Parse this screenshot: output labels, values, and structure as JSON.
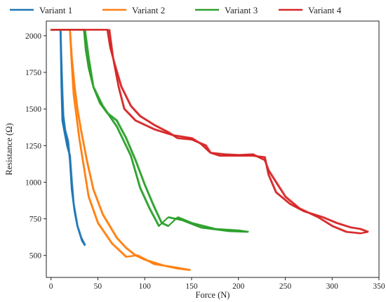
{
  "chart_data": {
    "type": "line",
    "xlabel": "Force (N)",
    "ylabel": "Resistance (Ω)",
    "xlim": [
      -5,
      350
    ],
    "ylim": [
      350,
      2100
    ],
    "xticks": [
      0,
      50,
      100,
      150,
      200,
      250,
      300,
      350
    ],
    "yticks": [
      500,
      750,
      1000,
      1250,
      1500,
      1750,
      2000
    ],
    "legend_position": "top",
    "grid": false,
    "series": [
      {
        "name": "Variant 1",
        "color": "#1f77b4",
        "x": [
          0,
          10,
          11,
          12,
          13,
          15,
          18,
          20,
          22,
          25,
          28,
          32,
          36,
          33,
          28,
          24,
          22,
          20,
          17,
          14,
          12,
          11,
          10
        ],
        "y": [
          2040,
          2040,
          1800,
          1600,
          1450,
          1350,
          1280,
          1150,
          950,
          800,
          700,
          620,
          570,
          600,
          700,
          850,
          1000,
          1180,
          1250,
          1350,
          1420,
          1650,
          2040
        ]
      },
      {
        "name": "Variant 2",
        "color": "#ff7f0e",
        "x": [
          0,
          20,
          22,
          25,
          28,
          32,
          38,
          45,
          55,
          70,
          80,
          90,
          100,
          120,
          135,
          148,
          130,
          110,
          92,
          80,
          65,
          50,
          40,
          35,
          30,
          27,
          24,
          22,
          20
        ],
        "y": [
          2040,
          2040,
          1850,
          1650,
          1500,
          1350,
          1150,
          950,
          780,
          620,
          550,
          500,
          470,
          430,
          410,
          400,
          420,
          440,
          500,
          490,
          580,
          720,
          900,
          1100,
          1300,
          1450,
          1600,
          1800,
          2040
        ]
      },
      {
        "name": "Variant 3",
        "color": "#2ca02c",
        "x": [
          0,
          35,
          37,
          40,
          45,
          52,
          60,
          70,
          80,
          90,
          100,
          110,
          118,
          125,
          135,
          150,
          175,
          200,
          210,
          190,
          160,
          140,
          125,
          115,
          105,
          95,
          85,
          70,
          55,
          45,
          40,
          36
        ],
        "y": [
          2040,
          2040,
          1900,
          1780,
          1650,
          1540,
          1470,
          1420,
          1300,
          1150,
          980,
          830,
          720,
          700,
          760,
          720,
          680,
          670,
          660,
          665,
          690,
          740,
          760,
          700,
          820,
          960,
          1180,
          1380,
          1520,
          1650,
          1850,
          2040
        ]
      },
      {
        "name": "Variant 4",
        "color": "#d62728",
        "x": [
          0,
          60,
          63,
          68,
          75,
          85,
          95,
          110,
          125,
          135,
          150,
          165,
          170,
          180,
          200,
          215,
          228,
          232,
          240,
          255,
          270,
          280,
          290,
          305,
          320,
          330,
          338,
          330,
          315,
          300,
          285,
          265,
          250,
          240,
          232,
          228,
          215,
          200,
          185,
          170,
          160,
          150,
          130,
          110,
          90,
          78,
          72,
          66,
          62
        ],
        "y": [
          2040,
          2040,
          1920,
          1800,
          1650,
          1520,
          1450,
          1390,
          1340,
          1300,
          1290,
          1250,
          1200,
          1180,
          1180,
          1180,
          1170,
          1050,
          930,
          850,
          800,
          780,
          760,
          720,
          690,
          680,
          660,
          650,
          660,
          700,
          760,
          820,
          900,
          1000,
          1080,
          1150,
          1190,
          1185,
          1190,
          1200,
          1260,
          1300,
          1320,
          1360,
          1420,
          1500,
          1650,
          1850,
          2040
        ]
      }
    ]
  }
}
